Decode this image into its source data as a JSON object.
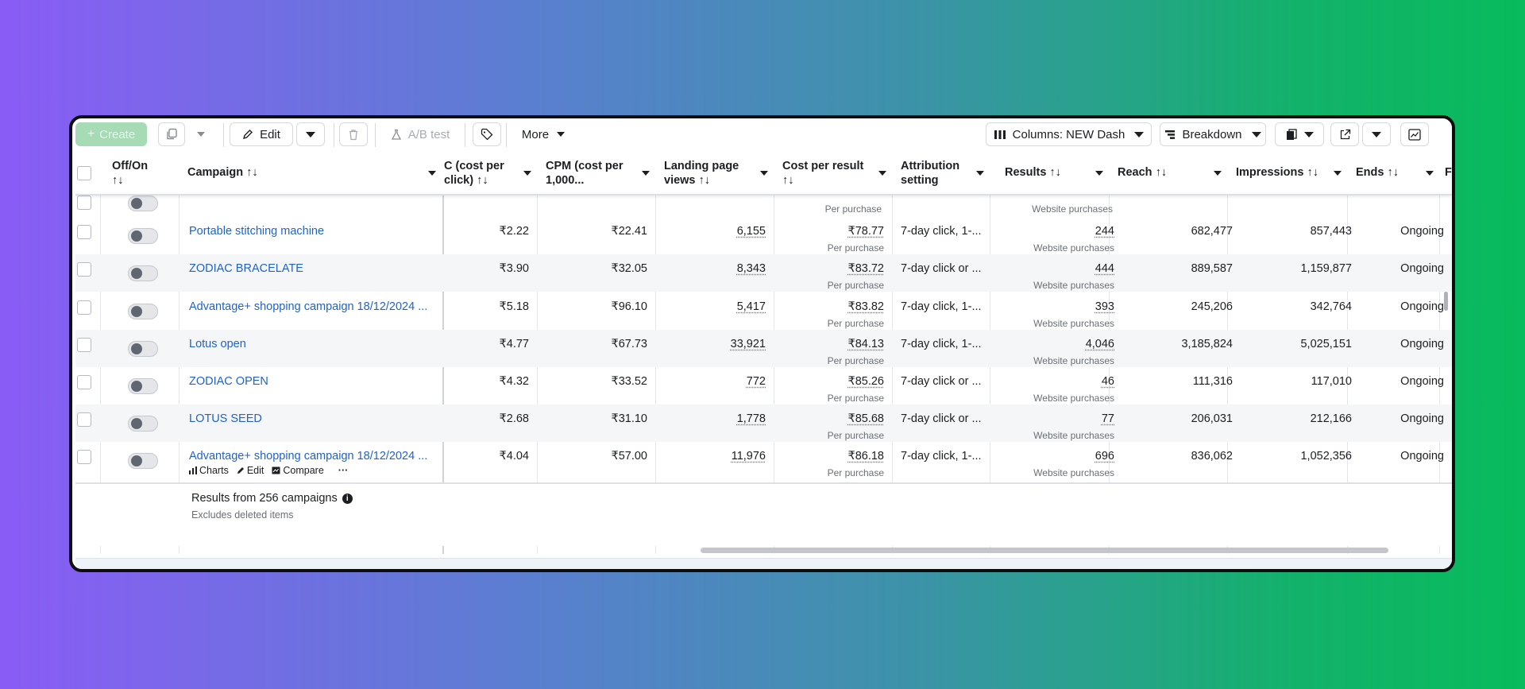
{
  "toolbar": {
    "create": "Create",
    "edit": "Edit",
    "ab_test": "A/B test",
    "more": "More",
    "columns": "Columns: NEW Dash",
    "breakdown": "Breakdown"
  },
  "headers": {
    "offon": "Off/On",
    "campaign": "Campaign",
    "cpc_1": "C (cost per",
    "cpc_2": "click)",
    "cpm_1": "CPM (cost per",
    "cpm_2": "1,000...",
    "lpv_1": "Landing page",
    "lpv_2": "views",
    "cpr_1": "Cost per result",
    "attr_1": "Attribution",
    "attr_2": "setting",
    "results": "Results",
    "reach": "Reach",
    "impressions": "Impressions",
    "ends": "Ends",
    "next": "F",
    "sort": "↑↓"
  },
  "partial_row": {
    "cpr_sub": "Per purchase",
    "results_sub": "Website purchases"
  },
  "rows": [
    {
      "campaign": "Portable stitching machine",
      "cpc": "₹2.22",
      "cpm": "₹22.41",
      "lpv": "6,155",
      "cpr": "₹78.77",
      "cpr_sub": "Per purchase",
      "attr": "7-day click, 1-...",
      "results": "244",
      "results_sub": "Website purchases",
      "reach": "682,477",
      "impressions": "857,443",
      "ends": "Ongoing"
    },
    {
      "campaign": "ZODIAC BRACELATE",
      "cpc": "₹3.90",
      "cpm": "₹32.05",
      "lpv": "8,343",
      "cpr": "₹83.72",
      "cpr_sub": "Per purchase",
      "attr": "7-day click or ...",
      "results": "444",
      "results_sub": "Website purchases",
      "reach": "889,587",
      "impressions": "1,159,877",
      "ends": "Ongoing"
    },
    {
      "campaign": "Advantage+ shopping campaign 18/12/2024 ...",
      "cpc": "₹5.18",
      "cpm": "₹96.10",
      "lpv": "5,417",
      "cpr": "₹83.82",
      "cpr_sub": "Per purchase",
      "attr": "7-day click, 1-...",
      "results": "393",
      "results_sub": "Website purchases",
      "reach": "245,206",
      "impressions": "342,764",
      "ends": "Ongoing"
    },
    {
      "campaign": "Lotus open",
      "cpc": "₹4.77",
      "cpm": "₹67.73",
      "lpv": "33,921",
      "cpr": "₹84.13",
      "cpr_sub": "Per purchase",
      "attr": "7-day click, 1-...",
      "results": "4,046",
      "results_sub": "Website purchases",
      "reach": "3,185,824",
      "impressions": "5,025,151",
      "ends": "Ongoing"
    },
    {
      "campaign": "ZODIAC OPEN",
      "cpc": "₹4.32",
      "cpm": "₹33.52",
      "lpv": "772",
      "cpr": "₹85.26",
      "cpr_sub": "Per purchase",
      "attr": "7-day click or ...",
      "results": "46",
      "results_sub": "Website purchases",
      "reach": "111,316",
      "impressions": "117,010",
      "ends": "Ongoing"
    },
    {
      "campaign": "LOTUS SEED",
      "cpc": "₹2.68",
      "cpm": "₹31.10",
      "lpv": "1,778",
      "cpr": "₹85.68",
      "cpr_sub": "Per purchase",
      "attr": "7-day click or ...",
      "results": "77",
      "results_sub": "Website purchases",
      "reach": "206,031",
      "impressions": "212,166",
      "ends": "Ongoing"
    },
    {
      "campaign": "Advantage+ shopping campaign 18/12/2024 ...",
      "cpc": "₹4.04",
      "cpm": "₹57.00",
      "lpv": "11,976",
      "cpr": "₹86.18",
      "cpr_sub": "Per purchase",
      "attr": "7-day click, 1-...",
      "results": "696",
      "results_sub": "Website purchases",
      "reach": "836,062",
      "impressions": "1,052,356",
      "ends": "Ongoing"
    }
  ],
  "row_actions": {
    "charts": "Charts",
    "edit": "Edit",
    "compare": "Compare",
    "more": "···"
  },
  "footer": {
    "title": "Results from 256 campaigns",
    "subtitle": "Excludes deleted items"
  }
}
